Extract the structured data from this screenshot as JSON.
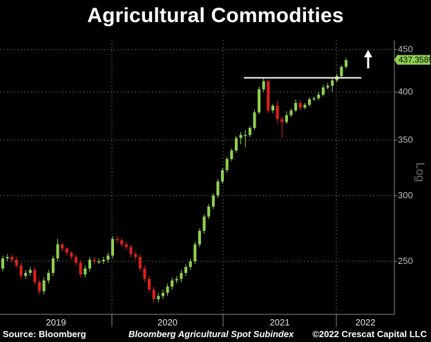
{
  "chart_data": {
    "type": "candlestick",
    "title": "Agricultural Commodities",
    "subtitle": "Bloomberg Agricultural Spot Subindex",
    "scale_label": "Log",
    "log_scale": true,
    "y_ticks": [
      "250",
      "300",
      "350",
      "400",
      "450"
    ],
    "ylim": [
      222,
      462
    ],
    "x_labels": [
      "2019",
      "2020",
      "2021",
      "2022"
    ],
    "last_value": "437.3589",
    "resistance_level": 416,
    "breakout_arrow": "up-arrow-icon",
    "colors": {
      "up": "#8fd14f",
      "down": "#e0201b",
      "last_label_bg": "#8fd14f",
      "line": "#ffffff",
      "grid": "#5a5a5a"
    },
    "series": {
      "open": [
        245,
        252,
        253,
        251,
        247,
        240,
        242,
        244,
        236,
        230,
        237,
        242,
        252,
        262,
        259,
        256,
        253,
        249,
        241,
        245,
        251,
        250,
        250,
        251,
        254,
        266,
        265,
        262,
        260,
        255,
        253,
        245,
        238,
        231,
        225,
        227,
        229,
        233,
        237,
        238,
        242,
        246,
        250,
        262,
        272,
        283,
        291,
        300,
        312,
        322,
        332,
        340,
        352,
        355,
        355,
        362,
        378,
        403,
        412,
        380,
        385,
        371,
        368,
        375,
        380,
        388,
        383,
        386,
        392,
        393,
        397,
        405,
        407,
        413,
        418,
        429
      ],
      "close": [
        252,
        253,
        251,
        247,
        240,
        242,
        244,
        236,
        230,
        237,
        242,
        252,
        262,
        259,
        256,
        253,
        249,
        241,
        245,
        251,
        250,
        250,
        251,
        254,
        266,
        265,
        262,
        260,
        255,
        253,
        245,
        238,
        231,
        225,
        227,
        229,
        233,
        237,
        238,
        242,
        246,
        250,
        262,
        272,
        283,
        291,
        300,
        312,
        322,
        332,
        340,
        352,
        355,
        355,
        362,
        378,
        403,
        412,
        380,
        385,
        371,
        368,
        375,
        380,
        388,
        383,
        386,
        392,
        393,
        397,
        405,
        407,
        413,
        418,
        429,
        437
      ],
      "high": [
        254,
        255,
        255,
        253,
        249,
        244,
        246,
        246,
        238,
        239,
        244,
        254,
        266,
        263,
        260,
        257,
        255,
        251,
        247,
        253,
        253,
        252,
        253,
        256,
        268,
        268,
        267,
        264,
        262,
        257,
        255,
        247,
        240,
        233,
        229,
        231,
        235,
        239,
        240,
        244,
        248,
        252,
        264,
        274,
        285,
        293,
        302,
        314,
        324,
        334,
        342,
        354,
        358,
        360,
        364,
        381,
        406,
        416,
        414,
        387,
        391,
        374,
        379,
        382,
        392,
        391,
        388,
        394,
        395,
        400,
        408,
        410,
        416,
        421,
        431,
        440
      ],
      "low": [
        243,
        250,
        249,
        245,
        238,
        238,
        240,
        234,
        228,
        228,
        235,
        240,
        250,
        257,
        254,
        251,
        247,
        239,
        239,
        243,
        248,
        248,
        248,
        249,
        252,
        263,
        260,
        258,
        253,
        251,
        243,
        236,
        229,
        223,
        223,
        225,
        227,
        231,
        235,
        236,
        240,
        244,
        248,
        260,
        270,
        281,
        289,
        298,
        310,
        320,
        330,
        338,
        346,
        343,
        353,
        360,
        376,
        400,
        377,
        377,
        367,
        352,
        366,
        373,
        378,
        380,
        381,
        384,
        390,
        391,
        395,
        403,
        400,
        411,
        416,
        427
      ]
    }
  },
  "footer": {
    "source": "Source: Bloomberg",
    "copyright": "©2022 Crescat Capital LLC"
  }
}
